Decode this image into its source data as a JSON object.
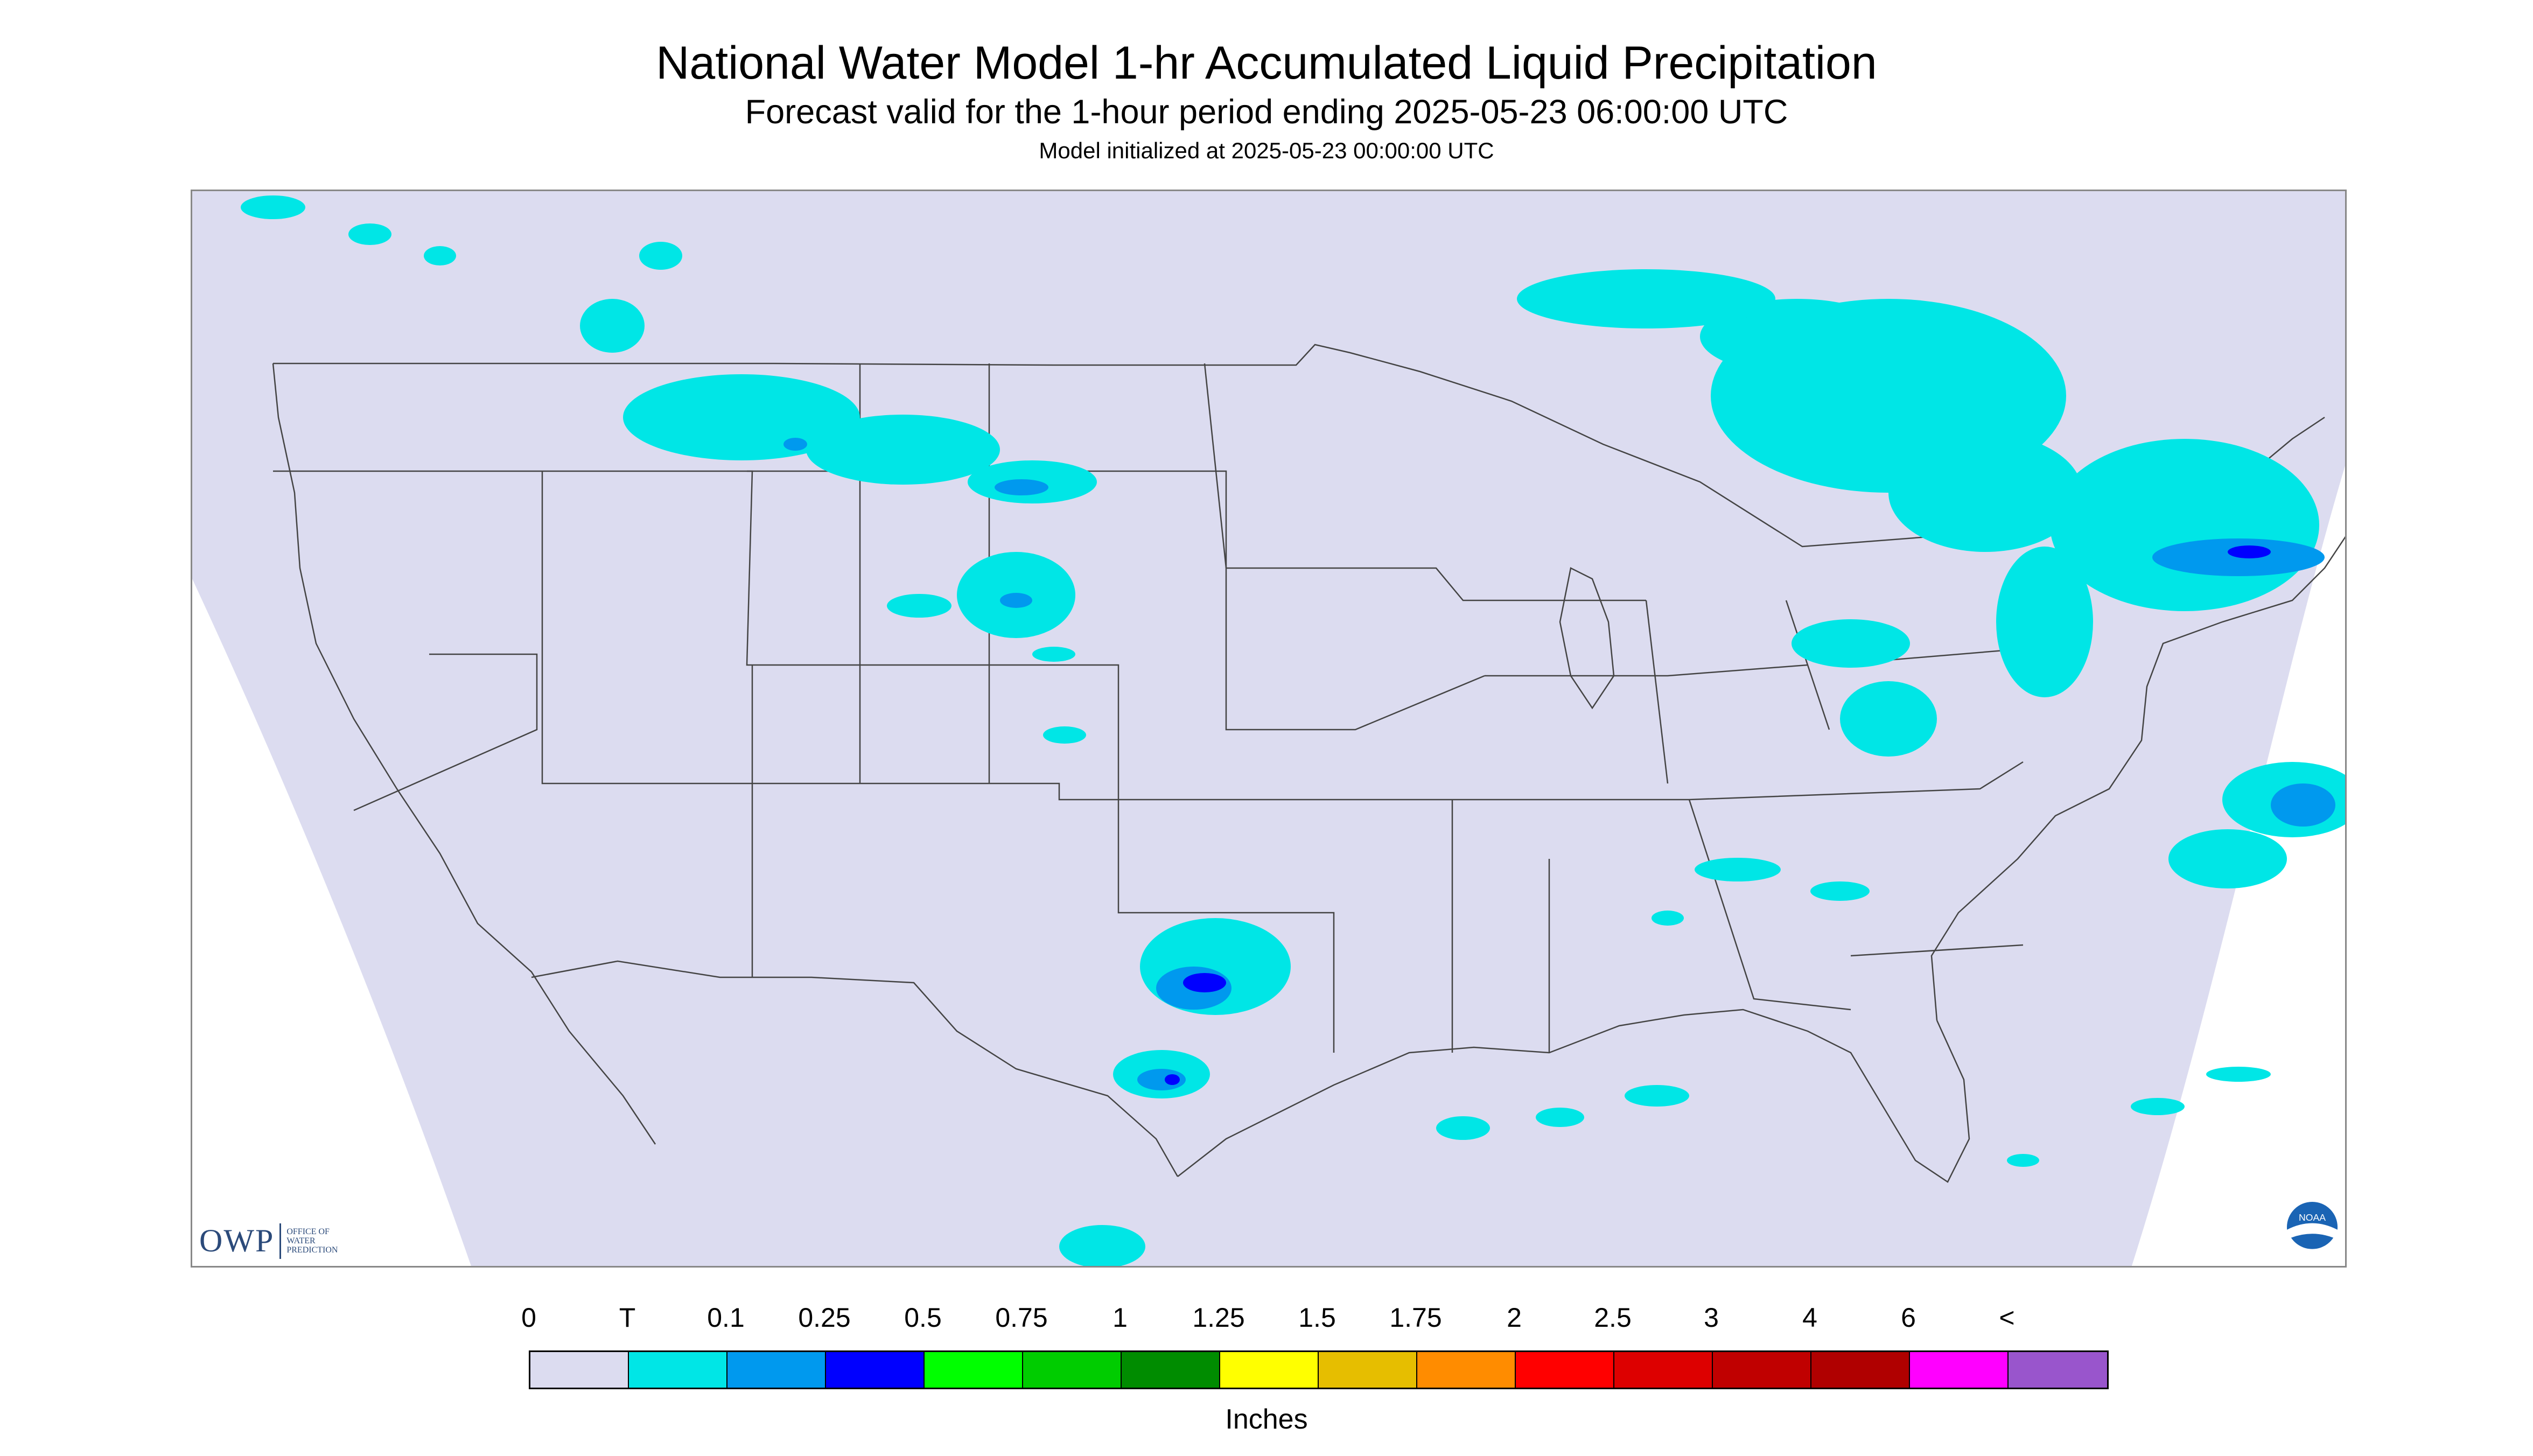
{
  "title": "National Water Model 1-hr Accumulated Liquid Precipitation",
  "subtitle": "Forecast valid for the 1-hour period ending 2025-05-23 06:00:00 UTC",
  "init": "Model initialized at 2025-05-23 00:00:00 UTC",
  "logos": {
    "owp_mark": "OWP",
    "owp_text": "OFFICE OF WATER PREDICTION",
    "noaa_text": "NOAA"
  },
  "legend": {
    "labels": [
      "0",
      "T",
      "0.1",
      "0.25",
      "0.5",
      "0.75",
      "1",
      "1.25",
      "1.5",
      "1.75",
      "2",
      "2.5",
      "3",
      "4",
      "6",
      "<"
    ],
    "colors": [
      "#dcdcf0",
      "#00e6e6",
      "#0099ee",
      "#0000ff",
      "#00ff00",
      "#00cc00",
      "#008c00",
      "#ffff00",
      "#e6be00",
      "#ff8c00",
      "#ff0000",
      "#dd0000",
      "#c00000",
      "#b00000",
      "#ff00ff",
      "#9955cc"
    ],
    "units": "Inches"
  },
  "colors": {
    "domain": "#dcdcf0",
    "trace": "#00e6e6",
    "light": "#0099ee",
    "heavy": "#0000ff",
    "border": "#444444"
  }
}
